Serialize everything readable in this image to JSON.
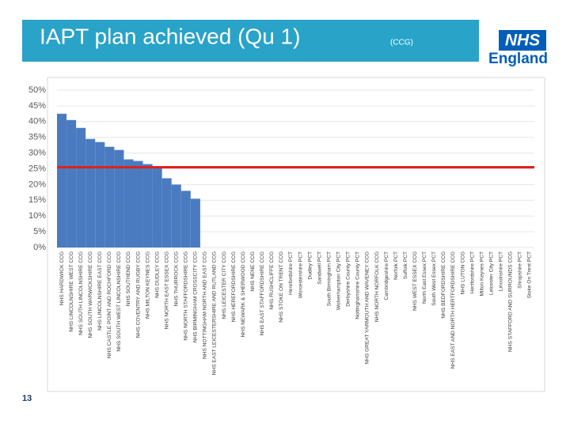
{
  "slide": {
    "title": "IAPT plan achieved (Qu 1)",
    "subtitle": "(CCG)",
    "logo_top": "NHS",
    "logo_bottom": "England",
    "page_number": "13"
  },
  "chart_data": {
    "type": "bar",
    "categories": [
      "NHS HARDWICK CCG",
      "NHS LINCOLNSHIRE WEST CCG",
      "NHS SOUTH LINCOLNSHIRE CCG",
      "NHS SOUTH WARWICKSHIRE CCG",
      "NHS LINCOLNSHIRE EAST CCG",
      "NHS CASTLE POINT AND ROCHFORD CCG",
      "NHS SOUTH WEST LINCOLNSHIRE CCG",
      "NHS SOUTHEND CCG",
      "NHS COVENTRY AND RUGBY CCG",
      "NHS MILTON KEYNES CCG",
      "NHS DUDLEY CCG",
      "NHS NORTH EAST ESSEX CCG",
      "NHS THURROCK CCG",
      "NHS NORTH STAFFORDSHIRE CCG",
      "NHS BIRMINGHAM CROSSCITY CCG",
      "NHS NOTTINGHAM NORTH AND EAST CCG",
      "NHS EAST LEICESTERSHIRE AND RUTLAND CCG",
      "NHS LEICESTER CITY CCG",
      "NHS HEREFORDSHIRE CCG",
      "NHS NEWARK & SHERWOOD CCG",
      "NHS NENE CCG",
      "NHS EAST STAFFORDSHIRE CCG",
      "NHS RUSHCLIFFE CCG",
      "NHS STOKE ON TRENT CCG",
      "Herefordshire PCT",
      "Worcestershire PCT",
      "Dudley PCT",
      "Sandwell PCT",
      "South Birmingham PCT",
      "Wolverhampton City PCT",
      "Derbyshire County PCT",
      "Nottinghamshire County PCT",
      "NHS GREAT YARMOUTH AND WAVENEY CCG",
      "NHS NORTH NORFOLK CCG",
      "Cambridgeshire PCT",
      "Norfolk PCT",
      "Suffolk PCT",
      "NHS WEST ESSEX CCG",
      "North East Essex PCT",
      "South West Essex PCT",
      "NHS BEDFORDSHIRE CCG",
      "NHS EAST AND NORTH HERTFORDSHIRE CCG",
      "NHS LUTON CCG",
      "Hertfordshire PCT",
      "Milton Keynes PCT",
      "Leicester City PCT",
      "Lincolnshire PCT",
      "NHS STAFFORD AND SURROUNDS CCG",
      "Shropshire PCT",
      "Stoke On Trent PCT"
    ],
    "values": [
      42.5,
      40.5,
      38,
      34.5,
      33.5,
      32,
      31,
      28,
      27.5,
      26.5,
      25.5,
      22,
      20,
      18,
      15.5,
      null,
      null,
      null,
      null,
      null,
      null,
      null,
      null,
      null,
      null,
      null,
      null,
      null,
      null,
      null,
      null,
      null,
      null,
      null,
      null,
      null,
      null,
      null,
      null,
      null,
      null,
      null,
      null,
      null,
      null,
      null,
      null,
      null,
      null,
      null
    ],
    "color": "#4a7bc0",
    "target_line": {
      "value": 25.5,
      "color": "#e0201c"
    },
    "ylim": [
      0,
      50
    ],
    "yticks": [
      {
        "value": 0,
        "label": "0%"
      },
      {
        "value": 5,
        "label": "5%"
      },
      {
        "value": 10,
        "label": "10%"
      },
      {
        "value": 15,
        "label": "15%"
      },
      {
        "value": 20,
        "label": "20%"
      },
      {
        "value": 25,
        "label": "25%"
      },
      {
        "value": 30,
        "label": "30%"
      },
      {
        "value": 35,
        "label": "35%"
      },
      {
        "value": 40,
        "label": "40%"
      },
      {
        "value": 45,
        "label": "45%"
      },
      {
        "value": 50,
        "label": "50%"
      }
    ],
    "grid": true
  }
}
